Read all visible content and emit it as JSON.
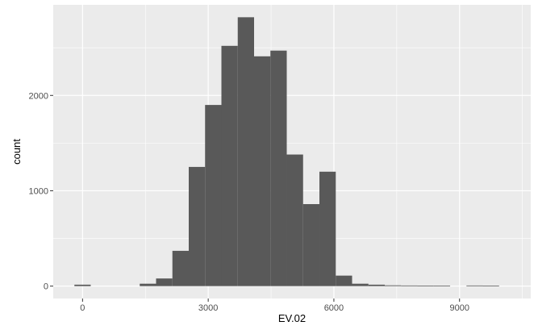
{
  "chart_data": {
    "type": "bar",
    "xlabel": "EV.02",
    "ylabel": "count",
    "xlim": [
      -700,
      10700
    ],
    "ylim": [
      -130,
      2950
    ],
    "x_ticks": [
      0,
      3000,
      6000,
      9000
    ],
    "y_ticks": [
      0,
      1000,
      2000
    ],
    "bin_width": 390,
    "bins": [
      {
        "x": 0,
        "count": 15
      },
      {
        "x": 1560,
        "count": 25
      },
      {
        "x": 1950,
        "count": 80
      },
      {
        "x": 2340,
        "count": 370
      },
      {
        "x": 2730,
        "count": 1250
      },
      {
        "x": 3120,
        "count": 1900
      },
      {
        "x": 3510,
        "count": 2520
      },
      {
        "x": 3900,
        "count": 2820
      },
      {
        "x": 4290,
        "count": 2410
      },
      {
        "x": 4680,
        "count": 2470
      },
      {
        "x": 5070,
        "count": 1380
      },
      {
        "x": 5460,
        "count": 860
      },
      {
        "x": 5850,
        "count": 1200
      },
      {
        "x": 6240,
        "count": 110
      },
      {
        "x": 6630,
        "count": 25
      },
      {
        "x": 7020,
        "count": 15
      },
      {
        "x": 7410,
        "count": 8
      },
      {
        "x": 7800,
        "count": 6
      },
      {
        "x": 8190,
        "count": 5
      },
      {
        "x": 8580,
        "count": 4
      },
      {
        "x": 9360,
        "count": 6
      },
      {
        "x": 9750,
        "count": 4
      }
    ],
    "grid": true,
    "legend": "none",
    "colors": {
      "panel": "#ebebeb",
      "grid_major": "#ffffff",
      "bar": "#595959",
      "tick_text": "#4d4d4d",
      "tick_mark": "#333333"
    }
  }
}
